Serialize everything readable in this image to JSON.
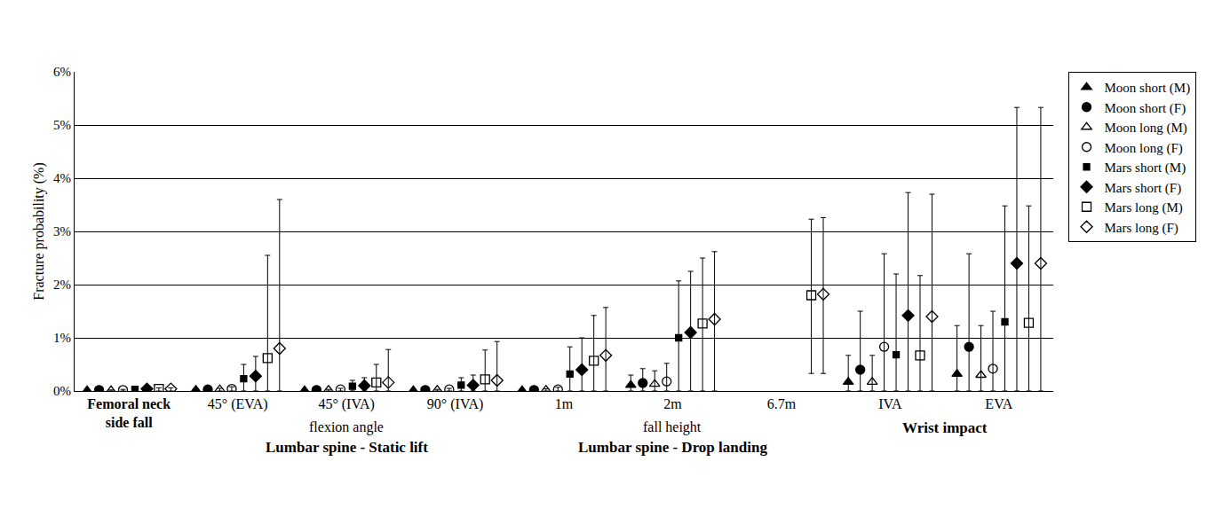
{
  "chart_data": {
    "type": "scatter",
    "y_label": "Fracture probability (%)",
    "categories": [
      "Femoral neck side fall",
      "45° (EVA)",
      "45° (IVA)",
      "90° (IVA)",
      "1m",
      "2m",
      "6.7m",
      "IVA",
      "EVA"
    ],
    "groups": [
      {
        "label": "Lumbar spine - Static lift",
        "sublabel": "flexion angle",
        "categories": [
          "45° (EVA)",
          "45° (IVA)",
          "90° (IVA)"
        ]
      },
      {
        "label": "Lumbar spine - Drop landing",
        "sublabel": "fall height",
        "categories": [
          "1m",
          "2m",
          "6.7m"
        ]
      },
      {
        "label": "Wrist impact",
        "categories": [
          "IVA",
          "EVA"
        ]
      }
    ],
    "ylim": [
      0,
      6
    ],
    "yticks": [
      {
        "value": 0,
        "label": "0%"
      },
      {
        "value": 1,
        "label": "1%"
      },
      {
        "value": 2,
        "label": "2%"
      },
      {
        "value": 3,
        "label": "3%"
      },
      {
        "value": 4,
        "label": "4%"
      },
      {
        "value": 5,
        "label": "5%"
      },
      {
        "value": 6,
        "label": "6%"
      }
    ],
    "grid": true,
    "legend": "right",
    "series": [
      {
        "name": "Moon short (M)",
        "color": "#000000",
        "marker": "triangle-up",
        "values": [
          0.01,
          0.02,
          0.01,
          0.01,
          0.01,
          0.11,
          null,
          0.17,
          0.32
        ],
        "ci_lower": [
          0,
          0,
          0,
          0,
          0,
          0,
          null,
          0,
          0
        ],
        "ci_upper": [
          0.02,
          0.04,
          0.02,
          0.02,
          0.03,
          0.3,
          null,
          0.67,
          1.23
        ]
      },
      {
        "name": "Moon short (F)",
        "color": "#000000",
        "marker": "circle",
        "values": [
          0.02,
          0.03,
          0.02,
          0.02,
          0.02,
          0.15,
          null,
          0.4,
          0.83
        ],
        "ci_lower": [
          0,
          0,
          0,
          0,
          0,
          0,
          null,
          0,
          0
        ],
        "ci_upper": [
          0.03,
          0.06,
          0.04,
          0.04,
          0.05,
          0.42,
          null,
          1.5,
          2.58
        ]
      },
      {
        "name": "Moon long (M)",
        "color": "#000000",
        "marker": "triangle-up-open",
        "values": [
          0.01,
          0.03,
          0.02,
          0.02,
          0.02,
          0.13,
          null,
          0.17,
          0.3
        ],
        "ci_lower": [
          0,
          0,
          0,
          0,
          0,
          0,
          null,
          0,
          0
        ],
        "ci_upper": [
          0.02,
          0.05,
          0.03,
          0.03,
          0.04,
          0.38,
          null,
          0.67,
          1.23
        ]
      },
      {
        "name": "Moon long (F)",
        "color": "#000000",
        "marker": "circle-open",
        "values": [
          0.02,
          0.04,
          0.03,
          0.03,
          0.03,
          0.18,
          null,
          0.83,
          0.42
        ],
        "ci_lower": [
          0,
          0,
          0,
          0,
          0,
          0,
          null,
          0,
          0
        ],
        "ci_upper": [
          0.03,
          0.08,
          0.05,
          0.05,
          0.07,
          0.52,
          null,
          2.58,
          1.5
        ]
      },
      {
        "name": "Mars short (M)",
        "color": "#000000",
        "marker": "square",
        "values": [
          0.03,
          0.23,
          0.09,
          0.11,
          0.32,
          1.0,
          null,
          0.68,
          1.3
        ],
        "ci_lower": [
          0,
          0,
          0,
          0,
          0,
          0,
          null,
          0,
          0
        ],
        "ci_upper": [
          0.05,
          0.5,
          0.2,
          0.25,
          0.83,
          2.07,
          null,
          2.2,
          3.48
        ]
      },
      {
        "name": "Mars short (F)",
        "color": "#000000",
        "marker": "diamond",
        "values": [
          0.04,
          0.28,
          0.1,
          0.11,
          0.4,
          1.1,
          null,
          1.42,
          2.4
        ],
        "ci_lower": [
          0,
          0,
          0,
          0,
          0,
          0,
          null,
          0,
          0
        ],
        "ci_upper": [
          0.06,
          0.65,
          0.25,
          0.3,
          1.0,
          2.25,
          null,
          3.73,
          5.33
        ]
      },
      {
        "name": "Mars long (M)",
        "color": "#000000",
        "marker": "square-open",
        "values": [
          0.04,
          0.62,
          0.16,
          0.22,
          0.57,
          1.27,
          1.8,
          0.67,
          1.28
        ],
        "ci_lower": [
          0,
          0,
          0,
          0,
          0,
          0,
          0.33,
          0,
          0
        ],
        "ci_upper": [
          0.06,
          2.55,
          0.5,
          0.77,
          1.42,
          2.5,
          3.23,
          2.17,
          3.48
        ]
      },
      {
        "name": "Mars long (F)",
        "color": "#000000",
        "marker": "diamond-open",
        "values": [
          0.04,
          0.8,
          0.16,
          0.2,
          0.67,
          1.35,
          1.82,
          1.4,
          2.4
        ],
        "ci_lower": [
          0,
          0,
          0,
          0,
          0,
          0,
          0.33,
          0,
          0
        ],
        "ci_upper": [
          0.06,
          3.6,
          0.78,
          0.93,
          1.57,
          2.62,
          3.26,
          3.7,
          5.33
        ]
      }
    ]
  }
}
